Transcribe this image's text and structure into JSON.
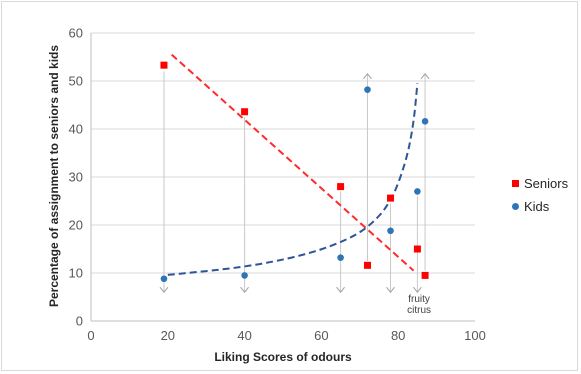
{
  "chart_data": {
    "type": "scatter",
    "title": "",
    "xlabel": "Liking Scores of odours",
    "ylabel": "Percentage of assignment to seniors and kids",
    "xlim": [
      0,
      100
    ],
    "ylim": [
      0,
      60
    ],
    "x_ticks": [
      "0",
      "20",
      "40",
      "60",
      "80",
      "100"
    ],
    "y_ticks": [
      "0",
      "10",
      "20",
      "30",
      "40",
      "50",
      "60"
    ],
    "grid": "horizontal",
    "legend_position": "right",
    "series": [
      {
        "name": "Seniors",
        "color": "#ff0000",
        "marker": "square",
        "points": [
          {
            "x": 19,
            "y": 53.3
          },
          {
            "x": 40,
            "y": 43.6
          },
          {
            "x": 65,
            "y": 28
          },
          {
            "x": 72,
            "y": 11.6
          },
          {
            "x": 78,
            "y": 25.6
          },
          {
            "x": 85,
            "y": 15
          },
          {
            "x": 87,
            "y": 9.5
          }
        ],
        "trend": {
          "type": "linear",
          "x_from": 21,
          "x_to": 84,
          "y_from": 55.5,
          "y_to": 10.5,
          "style": "dashed"
        }
      },
      {
        "name": "Kids",
        "color": "#2e75b6",
        "marker": "circle",
        "points": [
          {
            "x": 19,
            "y": 8.8
          },
          {
            "x": 40,
            "y": 9.5
          },
          {
            "x": 65,
            "y": 13.2
          },
          {
            "x": 72,
            "y": 48.2
          },
          {
            "x": 78,
            "y": 18.8
          },
          {
            "x": 85,
            "y": 27
          },
          {
            "x": 87,
            "y": 41.6
          }
        ],
        "trend": {
          "type": "curve",
          "points": [
            [
              20,
              9.6
            ],
            [
              40,
              11.2
            ],
            [
              55,
              13.6
            ],
            [
              65,
              16.3
            ],
            [
              72,
              19.3
            ],
            [
              78,
              24.5
            ],
            [
              82,
              33
            ],
            [
              84,
              41
            ],
            [
              85,
              49.5
            ]
          ],
          "style": "dashed"
        }
      }
    ],
    "arrows": [
      {
        "x": 19,
        "direction": "down",
        "from": 52,
        "to": 6
      },
      {
        "x": 40,
        "direction": "down",
        "from": 42.5,
        "to": 6
      },
      {
        "x": 65,
        "direction": "down",
        "from": 27,
        "to": 6
      },
      {
        "x": 72,
        "direction": "up",
        "from": 12.5,
        "to": 51.5
      },
      {
        "x": 78,
        "direction": "down",
        "from": 24.5,
        "to": 6
      },
      {
        "x": 85,
        "direction": "down",
        "from": 26,
        "to": 6
      },
      {
        "x": 87,
        "direction": "up",
        "from": 10.5,
        "to": 51.5
      }
    ],
    "annotations": [
      {
        "text": "fruity",
        "x": 87,
        "y": 4
      },
      {
        "text": "citrus",
        "x": 87,
        "y": 1.7
      }
    ]
  }
}
